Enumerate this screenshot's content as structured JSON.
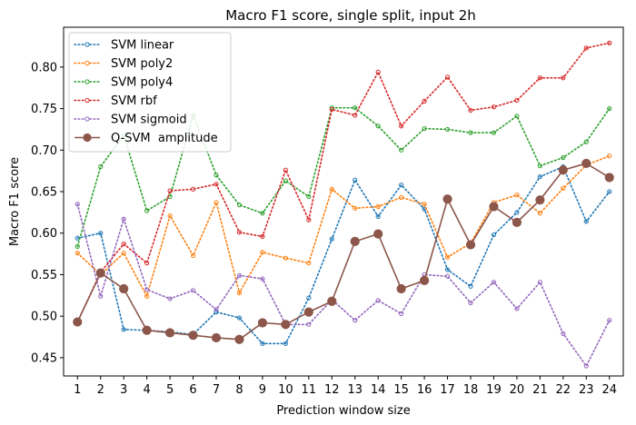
{
  "chart_data": {
    "type": "line",
    "title": "Macro F1 score, single split, input 2h",
    "xlabel": "Prediction window size",
    "ylabel": "Macro F1 score",
    "x": [
      1,
      2,
      3,
      4,
      5,
      6,
      7,
      8,
      9,
      10,
      11,
      12,
      13,
      14,
      15,
      16,
      17,
      18,
      19,
      20,
      21,
      22,
      23,
      24
    ],
    "xlim": [
      0.4,
      24.6
    ],
    "ylim": [
      0.428,
      0.848
    ],
    "yticks": [
      0.45,
      0.5,
      0.55,
      0.6,
      0.65,
      0.7,
      0.75,
      0.8
    ],
    "ytick_labels": [
      "0.45",
      "0.50",
      "0.55",
      "0.60",
      "0.65",
      "0.70",
      "0.75",
      "0.80"
    ],
    "grid": false,
    "legend_position": "top-left",
    "series": [
      {
        "name": "SVM linear",
        "color": "#1f77b4",
        "style": "dotted",
        "marker": "hollow-circle",
        "values": [
          0.594,
          0.6,
          0.484,
          0.483,
          0.481,
          0.478,
          0.505,
          0.498,
          0.467,
          0.467,
          0.522,
          0.593,
          0.664,
          0.62,
          0.658,
          0.629,
          0.556,
          0.536,
          0.598,
          0.625,
          0.668,
          0.68,
          0.614,
          0.65
        ]
      },
      {
        "name": "SVM poly2",
        "color": "#ff7f0e",
        "style": "dotted",
        "marker": "hollow-circle",
        "values": [
          0.576,
          0.55,
          0.576,
          0.524,
          0.621,
          0.573,
          0.637,
          0.528,
          0.577,
          0.57,
          0.564,
          0.653,
          0.63,
          0.632,
          0.643,
          0.635,
          0.571,
          0.588,
          0.637,
          0.646,
          0.624,
          0.654,
          0.682,
          0.693
        ]
      },
      {
        "name": "SVM poly4",
        "color": "#2ca02c",
        "style": "dotted",
        "marker": "hollow-circle",
        "values": [
          0.584,
          0.68,
          0.718,
          0.627,
          0.644,
          0.742,
          0.67,
          0.634,
          0.624,
          0.663,
          0.644,
          0.751,
          0.751,
          0.729,
          0.7,
          0.726,
          0.725,
          0.721,
          0.721,
          0.741,
          0.681,
          0.691,
          0.71,
          0.75
        ]
      },
      {
        "name": "SVM rbf",
        "color": "#d62728",
        "style": "dotted",
        "marker": "hollow-circle",
        "values": [
          0.493,
          0.553,
          0.587,
          0.564,
          0.651,
          0.653,
          0.659,
          0.601,
          0.596,
          0.676,
          0.616,
          0.749,
          0.742,
          0.794,
          0.729,
          0.759,
          0.788,
          0.748,
          0.752,
          0.76,
          0.787,
          0.787,
          0.823,
          0.829
        ]
      },
      {
        "name": "SVM sigmoid",
        "color": "#9467bd",
        "style": "dotted",
        "marker": "hollow-circle",
        "values": [
          0.635,
          0.524,
          0.617,
          0.532,
          0.521,
          0.531,
          0.508,
          0.549,
          0.545,
          0.49,
          0.49,
          0.52,
          0.495,
          0.519,
          0.503,
          0.55,
          0.548,
          0.516,
          0.541,
          0.509,
          0.541,
          0.479,
          0.44,
          0.495
        ]
      },
      {
        "name": "Q-SVM  amplitude",
        "color": "#8c564b",
        "style": "solid",
        "marker": "filled-circle",
        "values": [
          0.493,
          0.552,
          0.533,
          0.483,
          0.48,
          0.477,
          0.474,
          0.472,
          0.492,
          0.49,
          0.505,
          0.518,
          0.59,
          0.599,
          0.533,
          0.543,
          0.641,
          0.586,
          0.632,
          0.613,
          0.64,
          0.676,
          0.684,
          0.667
        ]
      }
    ]
  }
}
